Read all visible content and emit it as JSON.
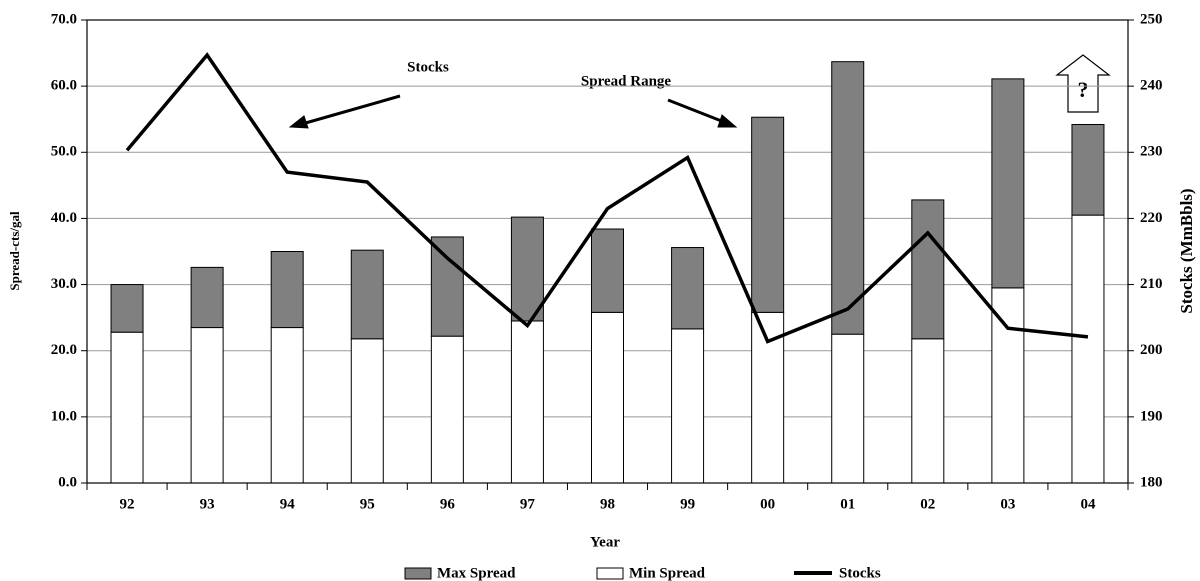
{
  "chart_data": {
    "type": "stacked-bar-line",
    "x_label": "Year",
    "y_label": "Spread-cts/gal",
    "y2_label": "Stocks (MmBbls)",
    "categories": [
      "92",
      "93",
      "94",
      "95",
      "96",
      "97",
      "98",
      "99",
      "00",
      "01",
      "02",
      "03",
      "04"
    ],
    "series": [
      {
        "name": "Min Spread",
        "color": "#ffffff",
        "values": [
          22.8,
          23.5,
          23.5,
          21.8,
          22.2,
          24.5,
          25.8,
          23.3,
          25.8,
          22.5,
          21.8,
          29.5,
          40.5
        ]
      },
      {
        "name": "Max Spread",
        "color": "#808080",
        "values": [
          7.2,
          9.1,
          11.5,
          13.4,
          15.0,
          15.7,
          12.6,
          12.3,
          29.5,
          41.2,
          21.0,
          31.6,
          13.7
        ]
      },
      {
        "name": "Stocks",
        "color": "#000000",
        "axis": "y2",
        "values": [
          230.3,
          244.7,
          227.0,
          225.5,
          214.0,
          203.8,
          221.5,
          229.2,
          201.4,
          206.3,
          217.8,
          203.4,
          202.1
        ]
      }
    ],
    "ylim": [
      0,
      70
    ],
    "yticks": [
      {
        "value": 0,
        "label": "0.0"
      },
      {
        "value": 10,
        "label": "10.0"
      },
      {
        "value": 20,
        "label": "20.0"
      },
      {
        "value": 30,
        "label": "30.0"
      },
      {
        "value": 40,
        "label": "40.0"
      },
      {
        "value": 50,
        "label": "50.0"
      },
      {
        "value": 60,
        "label": "60.0"
      },
      {
        "value": 70,
        "label": "70.0"
      }
    ],
    "y2lim": [
      180,
      250
    ],
    "y2ticks": [
      180,
      190,
      200,
      210,
      220,
      230,
      240,
      250
    ],
    "grid": true,
    "legend": "bottom",
    "annotations": [
      "Stocks",
      "Spread Range",
      "?"
    ]
  }
}
